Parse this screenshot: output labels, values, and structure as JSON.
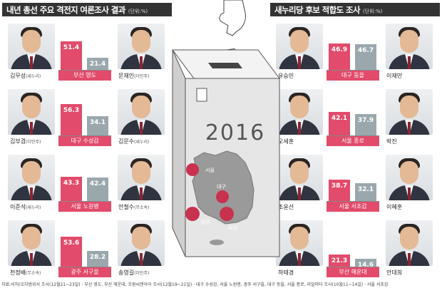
{
  "left_panel": {
    "title": "내년 총선 주요 격전지 여론조사 결과",
    "unit": "(단위:%)"
  },
  "right_panel": {
    "title": "새누리당 후보 적합도 조사",
    "unit": "(단위:%)"
  },
  "ballot_year": "2016",
  "map_labels": {
    "seoul": "서울",
    "daegu": "대구",
    "gwangju": "광주",
    "busan": "부산"
  },
  "footnote": "자료:서치(오차범위서 조사(12월21~23일) · 부산 영도, 부산 해운대, 조원씨앤아이 조사(12월19~21일) · 대구 수성갑, 서울 노원병, 광주 서구을, 대구 동을, 서울 종로, 리얼미터 조사(10월11~14일) · 서울 서초갑",
  "colors": {
    "bar_primary": "#e24b6b",
    "bar_secondary": "#9aa8ad",
    "header_bg": "#333333"
  },
  "chart_data": [
    {
      "type": "bar",
      "title": "내년 총선 주요 격전지 여론조사 결과",
      "unit": "(단위:%)",
      "rows": [
        {
          "district": "부산 영도",
          "candidates": [
            {
              "name": "김무성",
              "party": "(새누리)",
              "value": 51.4
            },
            {
              "name": "문재인",
              "party": "(더민주)",
              "value": 21.4
            }
          ]
        },
        {
          "district": "대구 수성갑",
          "candidates": [
            {
              "name": "김부겸",
              "party": "(더민주)",
              "value": 56.3
            },
            {
              "name": "김문수",
              "party": "(새누리)",
              "value": 34.1
            }
          ]
        },
        {
          "district": "서울 노원병",
          "candidates": [
            {
              "name": "이준석",
              "party": "(새누리)",
              "value": 43.3
            },
            {
              "name": "안철수",
              "party": "(무소속)",
              "value": 42.4
            }
          ]
        },
        {
          "district": "광주 서구을",
          "candidates": [
            {
              "name": "천정배",
              "party": "(무소속)",
              "value": 53.6
            },
            {
              "name": "송영길",
              "party": "(더민주)",
              "value": 28.2
            }
          ]
        }
      ]
    },
    {
      "type": "bar",
      "title": "새누리당 후보 적합도 조사",
      "unit": "(단위:%)",
      "rows": [
        {
          "district": "대구 동을",
          "candidates": [
            {
              "name": "유승민",
              "party": "",
              "value": 46.9
            },
            {
              "name": "이재만",
              "party": "",
              "value": 46.7
            }
          ]
        },
        {
          "district": "서울 종로",
          "candidates": [
            {
              "name": "오세훈",
              "party": "",
              "value": 42.1
            },
            {
              "name": "박진",
              "party": "",
              "value": 37.9
            }
          ]
        },
        {
          "district": "서울 서초갑",
          "candidates": [
            {
              "name": "조윤선",
              "party": "",
              "value": 38.7
            },
            {
              "name": "이혜훈",
              "party": "",
              "value": 32.1
            }
          ]
        },
        {
          "district": "부산 해운대",
          "candidates": [
            {
              "name": "하태경",
              "party": "",
              "value": 21.3
            },
            {
              "name": "안대희",
              "party": "",
              "value": 14.6
            }
          ]
        }
      ]
    }
  ]
}
